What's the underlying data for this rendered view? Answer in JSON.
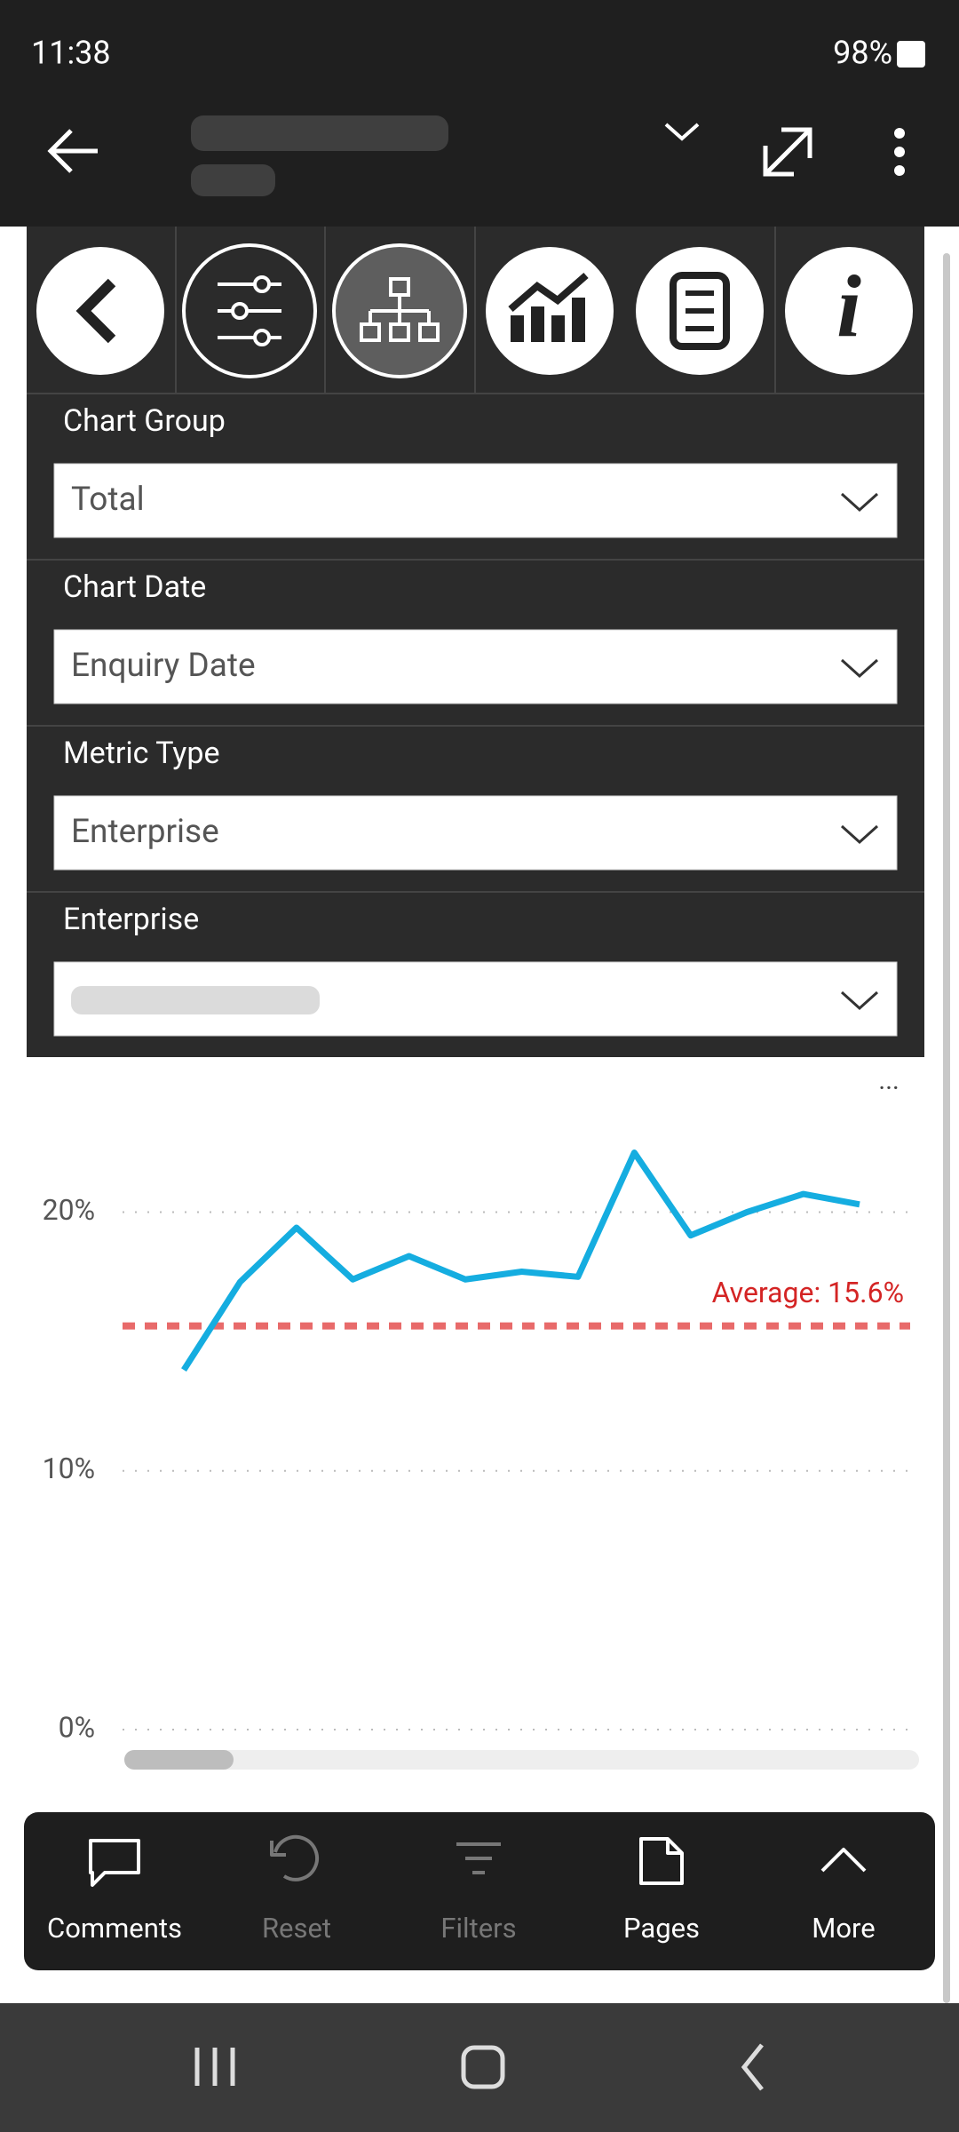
{
  "status": {
    "time": "11:38",
    "battery": "98%"
  },
  "filters": [
    {
      "label": "Chart Group",
      "value": "Total"
    },
    {
      "label": "Chart Date",
      "value": "Enquiry Date"
    },
    {
      "label": "Metric Type",
      "value": "Enterprise"
    },
    {
      "label": "Enterprise"
    }
  ],
  "chart_data": {
    "type": "line",
    "categories": [
      null,
      null,
      null,
      null,
      null,
      null,
      null,
      null,
      null,
      null,
      null,
      null,
      null
    ],
    "values": [
      13.9,
      17.3,
      19.4,
      17.4,
      18.3,
      17.4,
      17.7,
      17.5,
      22.3,
      19.1,
      20.0,
      20.7,
      20.3
    ],
    "color": "#15ade0",
    "ylim": [
      0,
      24
    ],
    "yticks": [
      {
        "value": 0,
        "label": "0%"
      },
      {
        "value": 10,
        "label": "10%"
      },
      {
        "value": 20,
        "label": "20%"
      }
    ],
    "grid": true,
    "average": {
      "value": 15.6,
      "label": "Average: 15.6%",
      "color": "#e86a6a"
    }
  },
  "nav": [
    "Comments",
    "Reset",
    "Filters",
    "Pages",
    "More"
  ]
}
